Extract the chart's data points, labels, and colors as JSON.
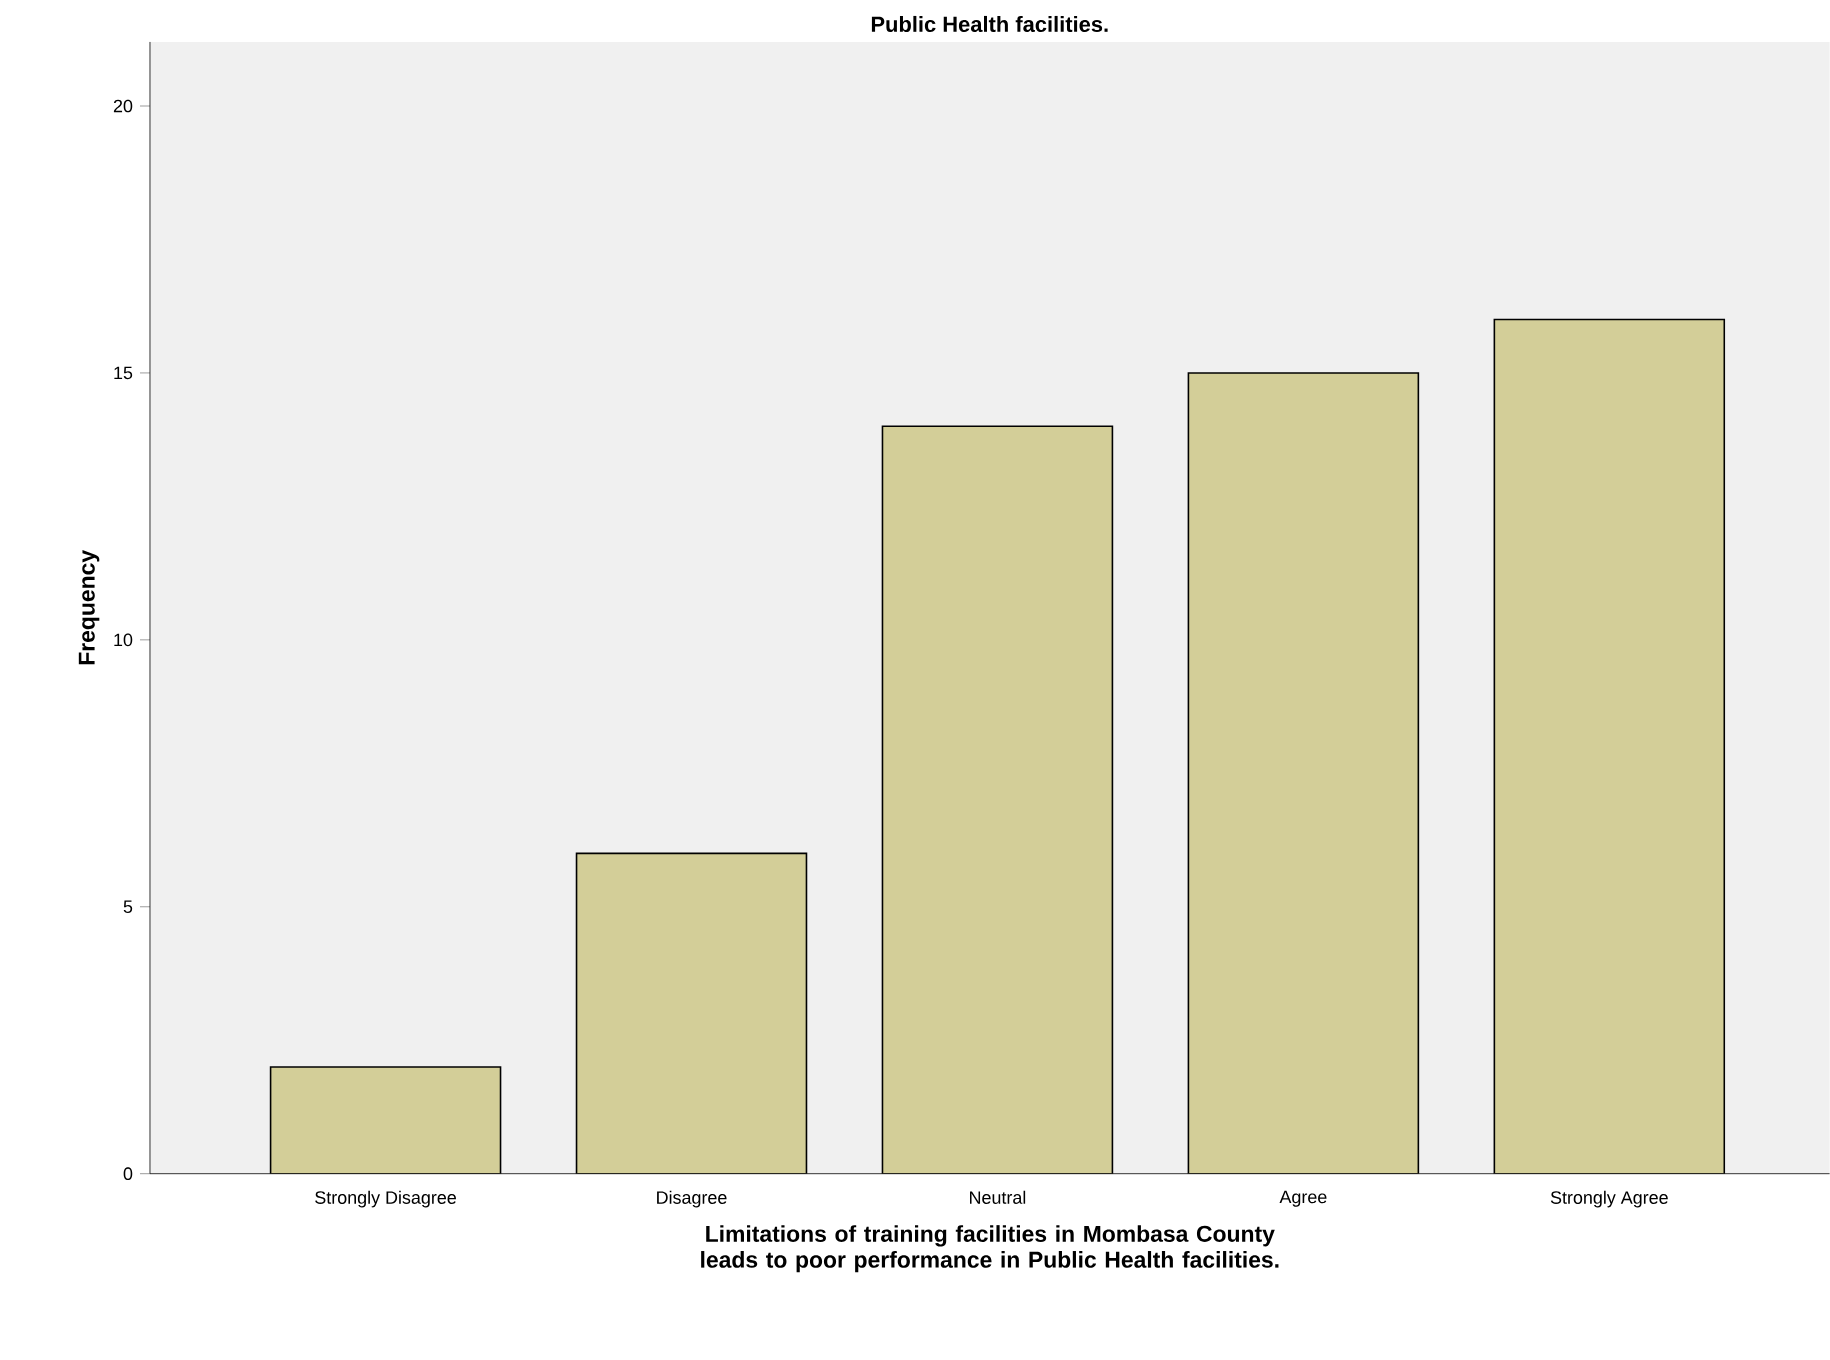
{
  "chart_data": {
    "type": "bar",
    "title": "Public Health facilities.",
    "xlabel": "Limitations of training facilities in Mombasa County leads to poor performance in Public Health facilities.",
    "ylabel": "Frequency",
    "categories": [
      "Strongly Disagree",
      "Disagree",
      "Neutral",
      "Agree",
      "Strongly Agree"
    ],
    "values": [
      2,
      6,
      14,
      15,
      16
    ],
    "color": "#d3ce98",
    "ylim": [
      0,
      21.2
    ],
    "yticks": [
      0,
      5,
      10,
      15,
      20
    ]
  }
}
